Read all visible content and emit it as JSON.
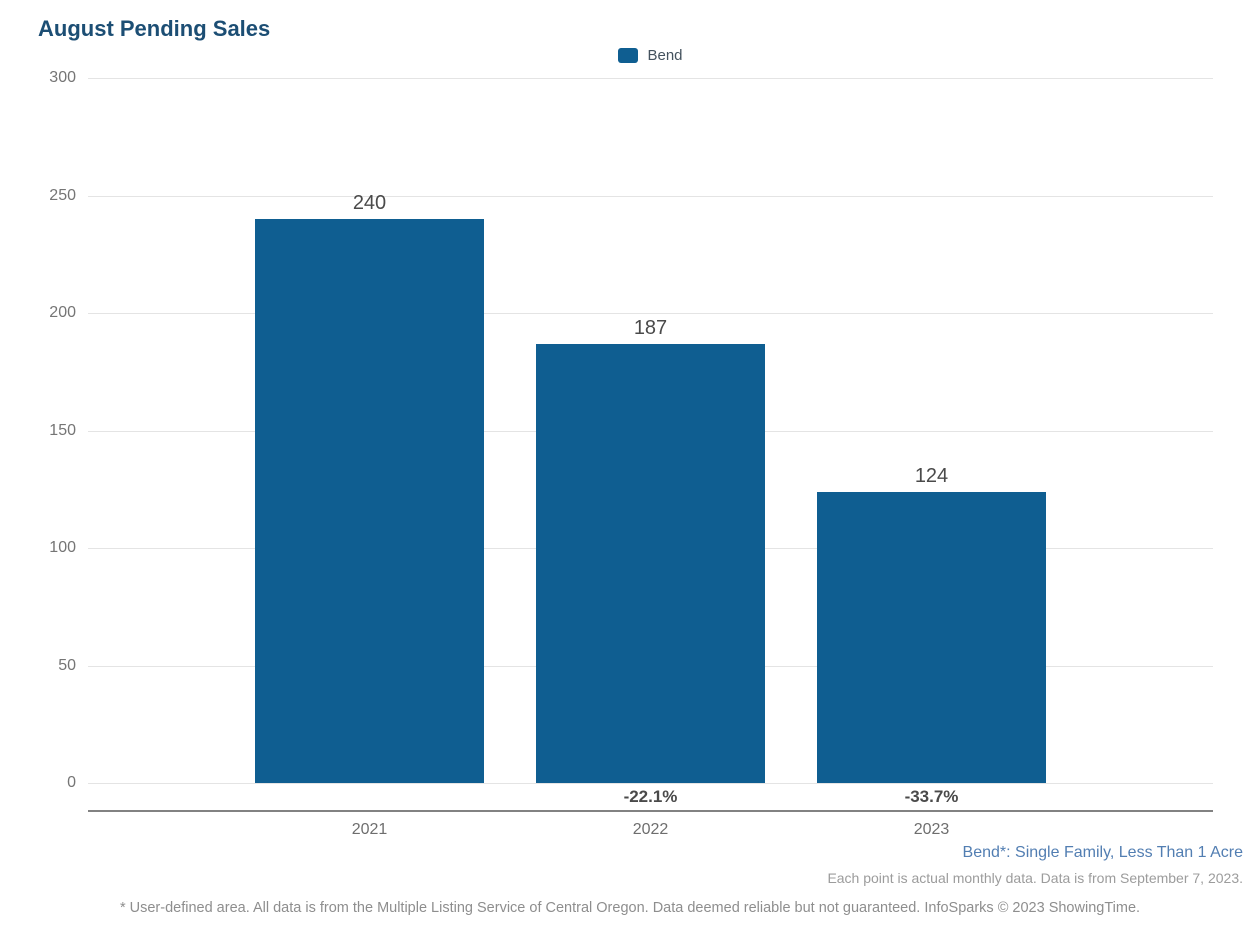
{
  "title": "August Pending Sales",
  "legend": {
    "label": "Bend",
    "swatch_color": "#0f5e91"
  },
  "chart_data": {
    "type": "bar",
    "title": "August Pending Sales",
    "categories": [
      "2021",
      "2022",
      "2023"
    ],
    "series": [
      {
        "name": "Bend",
        "values": [
          240,
          187,
          124
        ]
      }
    ],
    "bar_value_labels": [
      "240",
      "187",
      "124"
    ],
    "pct_change_labels": [
      "",
      "-22.1%",
      "-33.7%"
    ],
    "xlabel": "",
    "ylabel": "",
    "ylim": [
      0,
      300
    ],
    "yticks": [
      0,
      50,
      100,
      150,
      200,
      250,
      300
    ],
    "grid": "horizontal",
    "legend_position": "top-center",
    "bar_color": "#0f5e91"
  },
  "annotations": {
    "series_note": "Bend*: Single Family, Less Than 1 Acre",
    "data_note": "Each point is actual monthly data. Data is from September 7, 2023.",
    "footer": "* User-defined area. All data is from the Multiple Listing Service of Central Oregon. Data deemed reliable but not guaranteed. InfoSparks © 2023 ShowingTime."
  },
  "colors": {
    "title": "#1c4e74",
    "bar": "#0f5e91",
    "series_note": "#527eb2",
    "gridline": "#e4e4e4",
    "axis_line": "#828282",
    "tick_text": "#757575",
    "value_text": "#4a4a4a"
  }
}
